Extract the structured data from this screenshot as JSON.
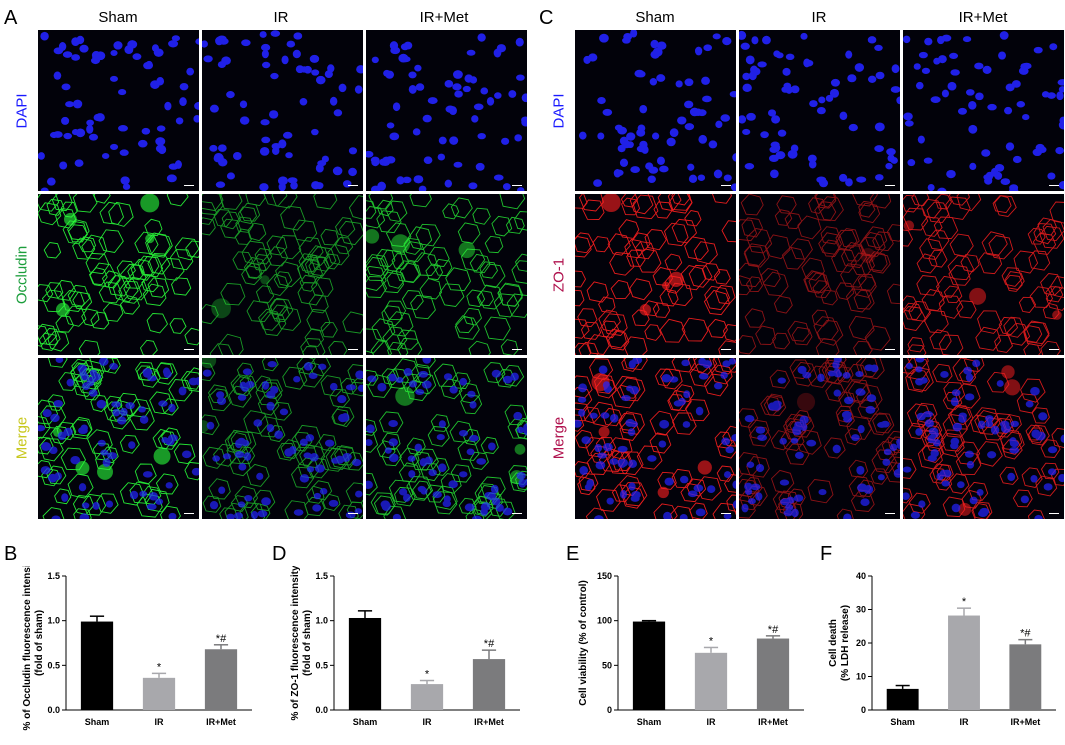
{
  "panel_letters": {
    "A": "A",
    "B": "B",
    "C": "C",
    "D": "D",
    "E": "E",
    "F": "F"
  },
  "image_panels": [
    {
      "letter": "A",
      "columns": [
        "Sham",
        "IR",
        "IR+Met"
      ],
      "rows": [
        {
          "label": "DAPI",
          "color": "#1a1aff",
          "stain": "nuclei"
        },
        {
          "label": "Occludin",
          "color": "#1c9e3c",
          "stain": "membrane"
        },
        {
          "label": "Merge",
          "color": "#c8c81e",
          "stain": "merge"
        }
      ],
      "channel_color": "#2aff3a",
      "intensity": [
        1.0,
        0.45,
        0.75
      ]
    },
    {
      "letter": "C",
      "columns": [
        "Sham",
        "IR",
        "IR+Met"
      ],
      "rows": [
        {
          "label": "DAPI",
          "color": "#1a1aff",
          "stain": "nuclei"
        },
        {
          "label": "ZO-1",
          "color": "#b0124e",
          "stain": "membrane"
        },
        {
          "label": "Merge",
          "color": "#b0124e",
          "stain": "merge"
        }
      ],
      "channel_color": "#ff2020",
      "intensity": [
        1.0,
        0.35,
        0.85
      ]
    }
  ],
  "chart_data": [
    {
      "letter": "B",
      "type": "bar",
      "categories": [
        "Sham",
        "IR",
        "IR+Met"
      ],
      "values": [
        0.99,
        0.36,
        0.68
      ],
      "errors": [
        0.06,
        0.05,
        0.05
      ],
      "annotations": [
        "",
        "*",
        "*#"
      ],
      "ylabel_lines": [
        "% of Occludin fluorescence intensity",
        "(fold of sham)"
      ],
      "ylim": [
        0,
        1.5
      ],
      "yticks": [
        "0.0",
        "0.5",
        "1.0",
        "1.5"
      ],
      "ytick_values": [
        0,
        0.5,
        1.0,
        1.5
      ],
      "bar_colors": [
        "#000000",
        "#a8a8ac",
        "#7b7b7d"
      ],
      "grid": false
    },
    {
      "letter": "D",
      "type": "bar",
      "categories": [
        "Sham",
        "IR",
        "IR+Met"
      ],
      "values": [
        1.03,
        0.29,
        0.57
      ],
      "errors": [
        0.08,
        0.04,
        0.1
      ],
      "annotations": [
        "",
        "*",
        "*#"
      ],
      "ylabel_lines": [
        "% of ZO-1 fluorescence intensity",
        "(fold of sham)"
      ],
      "ylim": [
        0,
        1.5
      ],
      "yticks": [
        "0.0",
        "0.5",
        "1.0",
        "1.5"
      ],
      "ytick_values": [
        0,
        0.5,
        1.0,
        1.5
      ],
      "bar_colors": [
        "#000000",
        "#a8a8ac",
        "#7b7b7d"
      ],
      "grid": false
    },
    {
      "letter": "E",
      "type": "bar",
      "categories": [
        "Sham",
        "IR",
        "IR+Met"
      ],
      "values": [
        99,
        64,
        80
      ],
      "errors": [
        1,
        6,
        3
      ],
      "annotations": [
        "",
        "*",
        "*#"
      ],
      "ylabel_lines": [
        "Cell viability (% of control)"
      ],
      "ylim": [
        0,
        150
      ],
      "yticks": [
        "0",
        "50",
        "100",
        "150"
      ],
      "ytick_values": [
        0,
        50,
        100,
        150
      ],
      "bar_colors": [
        "#000000",
        "#a8a8ac",
        "#7b7b7d"
      ],
      "grid": false
    },
    {
      "letter": "F",
      "type": "bar",
      "categories": [
        "Sham",
        "IR",
        "IR+Met"
      ],
      "values": [
        6.3,
        28.2,
        19.6
      ],
      "errors": [
        1.0,
        2.2,
        1.4
      ],
      "annotations": [
        "",
        "*",
        "*#"
      ],
      "ylabel_lines": [
        "Cell death",
        "(% LDH release)"
      ],
      "ylim": [
        0,
        40
      ],
      "yticks": [
        "0",
        "10",
        "20",
        "30",
        "40"
      ],
      "ytick_values": [
        0,
        10,
        20,
        30,
        40
      ],
      "bar_colors": [
        "#000000",
        "#a8a8ac",
        "#7b7b7d"
      ],
      "grid": false
    }
  ]
}
